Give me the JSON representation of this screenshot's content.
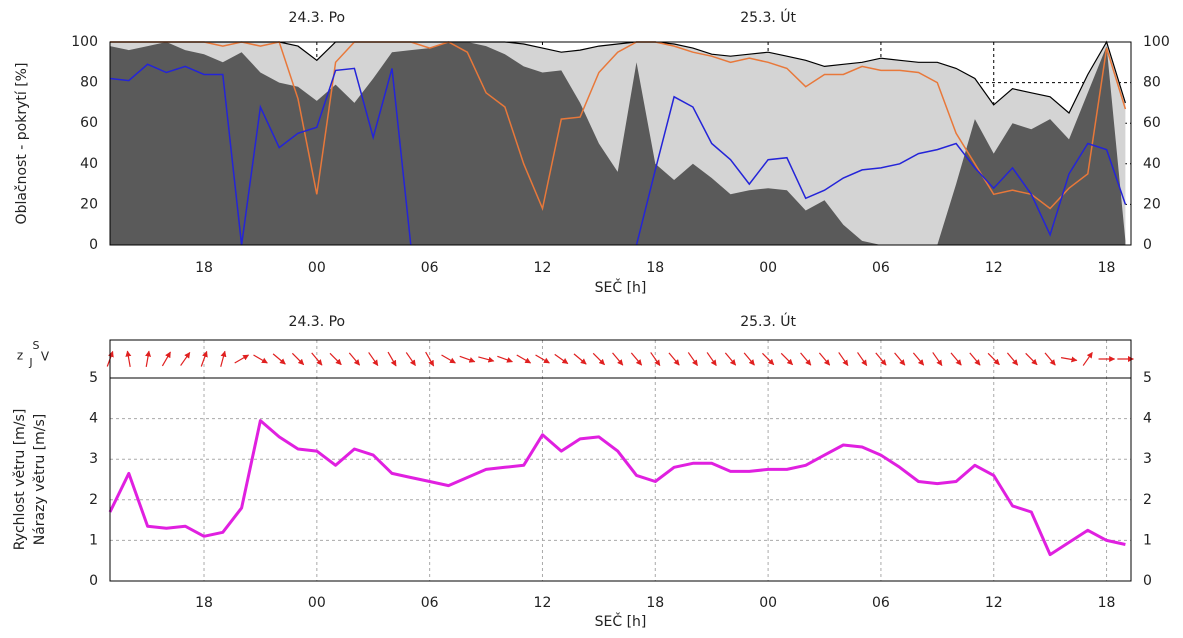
{
  "chart_data": [
    {
      "type": "area",
      "day_labels": [
        {
          "x": 0,
          "label": "24.3. Po"
        },
        {
          "x": 24,
          "label": "25.3. Út"
        }
      ],
      "ylabel": "Oblačnost - pokrytí [%]",
      "xlabel": "SEČ [h]",
      "x": [
        -11,
        -10,
        -9,
        -8,
        -7,
        -6,
        -5,
        -4,
        -3,
        -2,
        -1,
        0,
        1,
        2,
        3,
        4,
        5,
        6,
        7,
        8,
        9,
        10,
        11,
        12,
        13,
        14,
        15,
        16,
        17,
        18,
        19,
        20,
        21,
        22,
        23,
        24,
        25,
        26,
        27,
        28,
        29,
        30,
        31,
        32,
        33,
        34,
        35,
        36,
        37,
        38,
        39,
        40,
        41,
        42,
        43
      ],
      "xlim": [
        -11,
        43.3
      ],
      "xticks": [
        {
          "value": -6,
          "label": "18"
        },
        {
          "value": 0,
          "label": "00"
        },
        {
          "value": 6,
          "label": "06"
        },
        {
          "value": 12,
          "label": "12"
        },
        {
          "value": 18,
          "label": "18"
        },
        {
          "value": 24,
          "label": "00"
        },
        {
          "value": 30,
          "label": "06"
        },
        {
          "value": 36,
          "label": "12"
        },
        {
          "value": 42,
          "label": "18"
        }
      ],
      "ylim": [
        0,
        100
      ],
      "yticks": [
        0,
        20,
        40,
        60,
        80,
        100
      ],
      "grid": true,
      "grid_color": "#000000",
      "series": [
        {
          "style": "area",
          "color": "#d4d4d4",
          "line_color": "#000000",
          "values": [
            100,
            100,
            100,
            100,
            100,
            100,
            100,
            100,
            100,
            100,
            98,
            91,
            100,
            100,
            100,
            100,
            100,
            100,
            100,
            100,
            100,
            100,
            99,
            97,
            95,
            96,
            98,
            99,
            100,
            100,
            99,
            97,
            94,
            93,
            94,
            95,
            93,
            91,
            88,
            89,
            90,
            92,
            91,
            90,
            90,
            87,
            82,
            69,
            77,
            75,
            73,
            65,
            84,
            100,
            70
          ]
        },
        {
          "style": "area",
          "color": "#5a5a5a",
          "values": [
            98,
            96,
            98,
            100,
            96,
            94,
            90,
            95,
            85,
            80,
            78,
            71,
            79,
            70,
            82,
            95,
            96,
            97,
            100,
            100,
            98,
            94,
            88,
            85,
            86,
            70,
            50,
            36,
            90,
            40,
            32,
            40,
            33,
            25,
            27,
            28,
            27,
            17,
            22,
            10,
            2,
            0,
            0,
            0,
            0,
            30,
            62,
            45,
            60,
            57,
            62,
            52,
            75,
            98,
            2
          ]
        },
        {
          "style": "line",
          "color": "#e8783a",
          "values": [
            100,
            100,
            100,
            100,
            100,
            100,
            98,
            100,
            98,
            100,
            72,
            25,
            90,
            100,
            100,
            100,
            100,
            97,
            100,
            95,
            75,
            68,
            40,
            18,
            62,
            63,
            85,
            95,
            100,
            100,
            98,
            95,
            93,
            90,
            92,
            90,
            87,
            78,
            84,
            84,
            88,
            86,
            86,
            85,
            80,
            55,
            40,
            25,
            27,
            25,
            18,
            28,
            35,
            97,
            67
          ]
        },
        {
          "style": "line",
          "color": "#2424d8",
          "values": [
            82,
            81,
            89,
            85,
            88,
            84,
            84,
            0,
            68,
            48,
            55,
            58,
            86,
            87,
            53,
            87,
            0,
            null,
            null,
            null,
            null,
            null,
            null,
            null,
            null,
            null,
            null,
            null,
            0,
            37,
            73,
            68,
            50,
            42,
            30,
            42,
            43,
            23,
            27,
            33,
            37,
            38,
            40,
            45,
            47,
            50,
            38,
            28,
            38,
            25,
            5,
            35,
            50,
            47,
            20
          ]
        }
      ]
    },
    {
      "type": "line",
      "day_labels": [
        {
          "x": 0,
          "label": "24.3. Po"
        },
        {
          "x": 24,
          "label": "25.3. Út"
        }
      ],
      "ylabel": [
        "Rychlost větru [m/s]",
        "Nárazy větru [m/s]"
      ],
      "xlabel": "SEČ [h]",
      "compass": {
        "north": "S",
        "south": "J",
        "east": "V",
        "west": "z"
      },
      "x": [
        -11,
        -10,
        -9,
        -8,
        -7,
        -6,
        -5,
        -4,
        -3,
        -2,
        -1,
        0,
        1,
        2,
        3,
        4,
        5,
        6,
        7,
        8,
        9,
        10,
        11,
        12,
        13,
        14,
        15,
        16,
        17,
        18,
        19,
        20,
        21,
        22,
        23,
        24,
        25,
        26,
        27,
        28,
        29,
        30,
        31,
        32,
        33,
        34,
        35,
        36,
        37,
        38,
        39,
        40,
        41,
        42,
        43
      ],
      "xlim": [
        -11,
        43.3
      ],
      "xticks": [
        {
          "value": -6,
          "label": "18"
        },
        {
          "value": 0,
          "label": "00"
        },
        {
          "value": 6,
          "label": "06"
        },
        {
          "value": 12,
          "label": "12"
        },
        {
          "value": 18,
          "label": "18"
        },
        {
          "value": 24,
          "label": "00"
        },
        {
          "value": 30,
          "label": "06"
        },
        {
          "value": 36,
          "label": "12"
        },
        {
          "value": 42,
          "label": "18"
        }
      ],
      "ylim": [
        0,
        5
      ],
      "yticks": [
        0,
        1,
        2,
        3,
        4,
        5
      ],
      "grid": true,
      "grid_color": "#aaaaaa",
      "series": [
        {
          "color": "#e020e0",
          "values": [
            1.7,
            2.65,
            1.35,
            1.3,
            1.35,
            1.1,
            1.2,
            1.8,
            3.95,
            3.55,
            3.25,
            3.2,
            2.85,
            3.25,
            3.1,
            2.65,
            2.55,
            2.45,
            2.35,
            2.55,
            2.75,
            2.8,
            2.85,
            3.6,
            3.2,
            3.5,
            3.55,
            3.2,
            2.6,
            2.45,
            2.8,
            2.9,
            2.9,
            2.7,
            2.7,
            2.75,
            2.75,
            2.85,
            3.1,
            3.35,
            3.3,
            3.1,
            2.8,
            2.45,
            2.4,
            2.45,
            2.85,
            2.6,
            1.85,
            1.7,
            0.65,
            0.95,
            1.25,
            1.0,
            0.9
          ]
        }
      ],
      "wind_direction": {
        "color": "#e02020",
        "values": [
          200,
          170,
          190,
          210,
          215,
          200,
          195,
          240,
          300,
          310,
          315,
          320,
          315,
          320,
          325,
          330,
          325,
          330,
          300,
          290,
          285,
          290,
          300,
          300,
          305,
          310,
          315,
          320,
          320,
          325,
          320,
          325,
          325,
          320,
          320,
          315,
          315,
          320,
          320,
          325,
          325,
          320,
          320,
          320,
          325,
          320,
          320,
          315,
          320,
          315,
          320,
          280,
          215,
          270,
          270
        ]
      }
    }
  ]
}
